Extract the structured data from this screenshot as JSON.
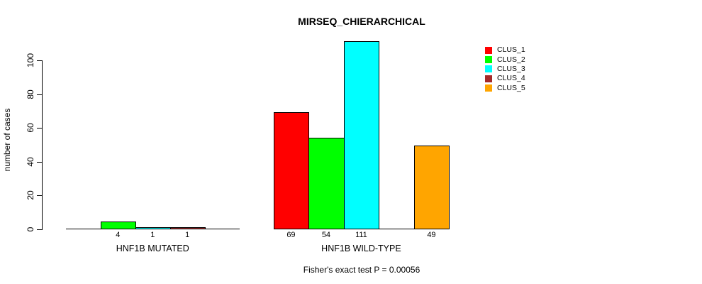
{
  "chart_data": {
    "type": "bar",
    "title": "MIRSEQ_CHIERARCHICAL",
    "ylabel": "number of cases",
    "xlabel": "",
    "yticks": [
      0,
      20,
      40,
      60,
      80,
      100
    ],
    "ylim": [
      0,
      112
    ],
    "grid": false,
    "categories": [
      "HNF1B MUTATED",
      "HNF1B WILD-TYPE"
    ],
    "series": [
      {
        "name": "CLUS_1",
        "color": "#FF0000",
        "values": [
          0,
          69
        ]
      },
      {
        "name": "CLUS_2",
        "color": "#00FF00",
        "values": [
          4,
          54
        ]
      },
      {
        "name": "CLUS_3",
        "color": "#00FFFF",
        "values": [
          1,
          111
        ]
      },
      {
        "name": "CLUS_4",
        "color": "#A52A2A",
        "values": [
          1,
          0
        ]
      },
      {
        "name": "CLUS_5",
        "color": "#FFA500",
        "values": [
          0,
          49
        ]
      }
    ],
    "visible_value_labels": [
      "4",
      "1",
      "1",
      "69",
      "54",
      "111",
      "49"
    ],
    "zero_value_bars_drawn_as_flat_baseline": true,
    "legend": {
      "position": "top-right",
      "entries": [
        "CLUS_1",
        "CLUS_2",
        "CLUS_3",
        "CLUS_4",
        "CLUS_5"
      ]
    },
    "annotation": "Fisher's exact test P = 0.00056"
  },
  "colors": {
    "background": "#FFFFFF",
    "axis": "#000000",
    "text": "#000000",
    "bar_border": "#000000"
  }
}
